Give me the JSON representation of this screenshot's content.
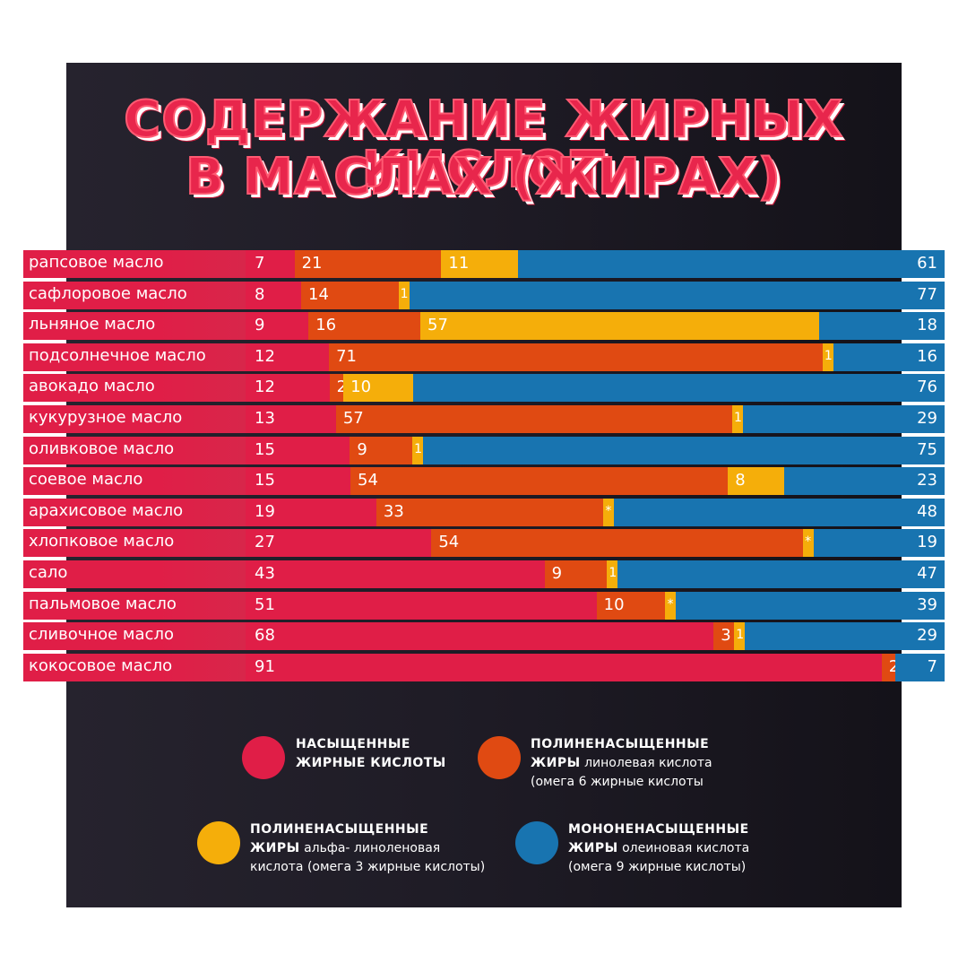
{
  "title": {
    "line1": "СОДЕРЖАНИЕ ЖИРНЫХ КИСЛОТ",
    "line2": "В МАСЛАХ (ЖИРАХ)"
  },
  "colors": {
    "saturated": "#e01e47",
    "omega6": "#e04a12",
    "omega3": "#f5ae0a",
    "omega9": "#1874b0"
  },
  "chart_data": {
    "type": "bar",
    "stacked": true,
    "orientation": "horizontal",
    "categories": [
      "рапсовое масло",
      "сафлоровое масло",
      "льняное масло",
      "подсолнечное масло",
      "авокадо масло",
      "кукурузное масло",
      "оливковое масло",
      "соевое масло",
      "арахисовое масло",
      "хлопковое масло",
      "сало",
      "пальмовое масло",
      "сливочное масло",
      "кокосовое масло"
    ],
    "series": [
      {
        "name": "насыщенные жирные кислоты",
        "color_key": "saturated",
        "values": [
          7,
          8,
          9,
          12,
          12,
          13,
          15,
          15,
          19,
          27,
          43,
          51,
          68,
          91
        ],
        "labels": [
          "7",
          "8",
          "9",
          "12",
          "12",
          "13",
          "15",
          "15",
          "19",
          "27",
          "43",
          "51",
          "68",
          "91"
        ]
      },
      {
        "name": "полиненасыщенные жиры линолевая кислота (омега 6 жирные кислоты",
        "color_key": "omega6",
        "values": [
          21,
          14,
          16,
          71,
          2,
          57,
          9,
          54,
          33,
          54,
          9,
          10,
          3,
          2
        ],
        "labels": [
          "21",
          "14",
          "16",
          "71",
          "2",
          "57",
          "9",
          "54",
          "33",
          "54",
          "9",
          "10",
          "3",
          "2"
        ]
      },
      {
        "name": "полиненасыщенные жиры альфа- линоленовая кислота (омега 3 жирные кислоты)",
        "color_key": "omega3",
        "values": [
          11,
          1,
          57,
          1,
          10,
          1,
          1,
          8,
          0.5,
          0.5,
          1,
          0.5,
          1,
          0
        ],
        "labels": [
          "11",
          "1",
          "57",
          "1",
          "10",
          "1",
          "1",
          "8",
          "*",
          "*",
          "1",
          "*",
          "1",
          ""
        ]
      },
      {
        "name": "мононенасыщенные жиры олеиновая кислота (омега 9 жирные кислоты)",
        "color_key": "omega9",
        "values": [
          61,
          77,
          18,
          16,
          76,
          29,
          75,
          23,
          48,
          19,
          47,
          39,
          29,
          7
        ],
        "labels": [
          "61",
          "77",
          "18",
          "16",
          "76",
          "29",
          "75",
          "23",
          "48",
          "19",
          "47",
          "39",
          "29",
          "7"
        ]
      }
    ]
  },
  "legend": [
    {
      "key": "saturated",
      "bold": "НАСЫЩЕННЫЕ",
      "bold2": "ЖИРНЫЕ КИСЛОТЫ",
      "rest": "",
      "line3": ""
    },
    {
      "key": "omega6",
      "bold": "ПОЛИНЕНАСЫЩЕННЫЕ",
      "bold2": "ЖИРЫ",
      "rest": " линолевая кислота",
      "line3": "(омега 6 жирные кислоты"
    },
    {
      "key": "omega3",
      "bold": "ПОЛИНЕНАСЫЩЕННЫЕ",
      "bold2": "ЖИРЫ",
      "rest": " альфа- линоленовая",
      "line3": "кислота (омега 3 жирные кислоты)"
    },
    {
      "key": "omega9",
      "bold": "МОНОНЕНАСЫЩЕННЫЕ",
      "bold2": "ЖИРЫ",
      "rest": " олеиновая кислота",
      "line3": "(омега 9 жирные кислоты)"
    }
  ]
}
